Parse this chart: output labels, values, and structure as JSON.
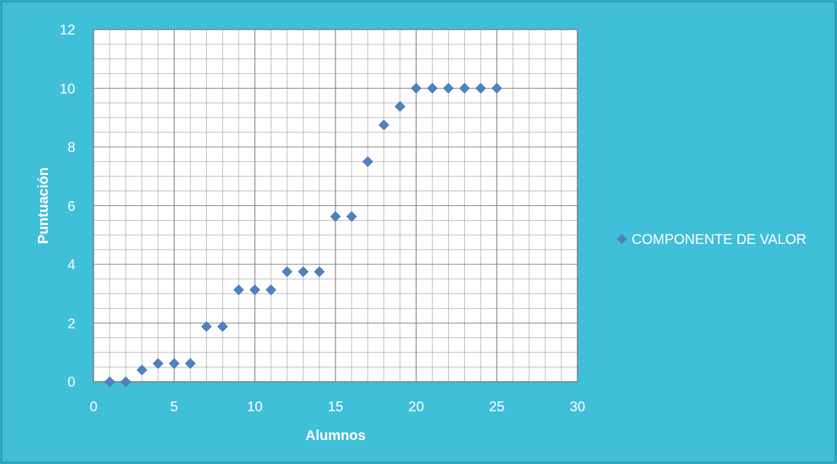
{
  "chart_data": {
    "type": "scatter",
    "xlabel": "Alumnos",
    "ylabel": "Puntuación",
    "x": [
      1,
      2,
      3,
      4,
      5,
      6,
      7,
      8,
      9,
      10,
      11,
      12,
      13,
      14,
      15,
      16,
      17,
      18,
      19,
      20,
      21,
      22,
      23,
      24,
      25
    ],
    "series": [
      {
        "name": "COMPONENTE DE VALOR",
        "color": "#4f81bd",
        "values": [
          0,
          0,
          0.4,
          0.62,
          0.62,
          0.62,
          1.88,
          1.88,
          3.13,
          3.13,
          3.13,
          3.75,
          3.75,
          3.75,
          5.63,
          5.63,
          7.5,
          8.75,
          9.38,
          10,
          10,
          10,
          10,
          10,
          10
        ]
      }
    ],
    "xlim": [
      0,
      30
    ],
    "xticks": [
      0,
      5,
      10,
      15,
      20,
      25,
      30
    ],
    "ylim": [
      0,
      12
    ],
    "yticks": [
      0,
      2,
      4,
      6,
      8,
      10,
      12
    ],
    "grid": true,
    "legend": "right",
    "marker": "diamond"
  }
}
